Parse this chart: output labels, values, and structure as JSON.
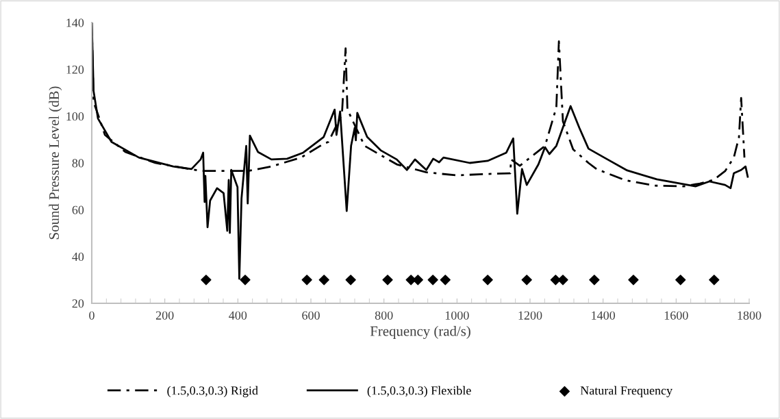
{
  "chart_data": {
    "type": "line",
    "xlabel": "Frequency (rad/s)",
    "ylabel": "Sound Pressure Level (dB)",
    "xlim": [
      0,
      1800
    ],
    "ylim": [
      20,
      140
    ],
    "xticks": [
      0,
      200,
      400,
      600,
      800,
      1000,
      1200,
      1400,
      1600,
      1800
    ],
    "yticks": [
      20,
      40,
      60,
      80,
      100,
      120,
      140
    ],
    "grid": false,
    "legend": "bottom",
    "series": [
      {
        "name": "(1.5,0.3,0.3) Rigid",
        "color": "#000000",
        "line_style": "dashdot",
        "marker": "none",
        "x": [
          0,
          5,
          21,
          36,
          92,
          174,
          268,
          298,
          429,
          492,
          573,
          635,
          648,
          685,
          695,
          700,
          747,
          835,
          916,
          998,
          1084,
          1146,
          1148,
          1172,
          1241,
          1272,
          1279,
          1290,
          1318,
          1360,
          1382,
          1459,
          1541,
          1622,
          1665,
          1702,
          1734,
          1758,
          1772,
          1778,
          1787
        ],
        "values": [
          140,
          106,
          99,
          92,
          84.7,
          80,
          77.4,
          76.6,
          76.6,
          78.5,
          82.3,
          88.2,
          89,
          100.8,
          129,
          102.8,
          87.3,
          79.4,
          76,
          74.7,
          75.3,
          75.6,
          81.5,
          78.8,
          87.3,
          103.7,
          132,
          97.8,
          85.8,
          80,
          77.4,
          72.7,
          70.3,
          70,
          71.2,
          72.7,
          76.5,
          82.3,
          91,
          107.8,
          82.3
        ]
      },
      {
        "name": "(1.5,0.3,0.3) Flexible",
        "color": "#000000",
        "line_style": "solid",
        "marker": "none",
        "x": [
          0,
          5,
          17,
          54,
          129,
          223,
          273,
          298,
          305,
          307,
          309,
          311,
          317,
          324,
          343,
          361,
          371,
          375,
          378,
          382,
          399,
          404,
          410,
          423,
          427,
          433,
          455,
          492,
          535,
          579,
          635,
          665,
          670,
          680,
          698,
          710,
          720,
          723,
          727,
          754,
          792,
          835,
          863,
          885,
          916,
          935,
          951,
          963,
          1035,
          1084,
          1135,
          1154,
          1165,
          1178,
          1191,
          1223,
          1241,
          1253,
          1272,
          1311,
          1335,
          1360,
          1403,
          1466,
          1547,
          1653,
          1691,
          1734,
          1749,
          1758,
          1778,
          1790,
          1796
        ],
        "values": [
          140,
          110.7,
          99,
          89,
          82.3,
          78.5,
          77.4,
          81.5,
          84.4,
          73.6,
          63.3,
          74.5,
          52.5,
          63.9,
          69.2,
          67.1,
          51,
          72.7,
          50.1,
          77,
          69.7,
          30.5,
          64.8,
          87.3,
          62.7,
          91.7,
          84.7,
          81.5,
          81.8,
          84.4,
          91.1,
          102.8,
          92,
          102,
          59.5,
          87.3,
          95,
          89.7,
          101.4,
          91.1,
          85.3,
          81.5,
          77,
          81.5,
          77,
          81.8,
          80.3,
          82.3,
          80,
          80.9,
          84.4,
          90.5,
          58.3,
          77.4,
          70.6,
          79.4,
          86.7,
          83.8,
          87.3,
          104.3,
          95,
          86.1,
          82.3,
          76.8,
          73,
          70,
          72.1,
          70.6,
          69.2,
          75.6,
          77,
          78.5,
          74.1
        ]
      },
      {
        "name": "Natural Frequency",
        "type": "scatter",
        "color": "#000000",
        "marker": "diamond",
        "x": [
          313,
          420,
          589,
          636,
          709,
          810,
          874,
          893,
          934,
          968,
          1084,
          1191,
          1270,
          1290,
          1376,
          1483,
          1612,
          1704
        ],
        "values": [
          30,
          30,
          30,
          30,
          30,
          30,
          30,
          30,
          30,
          30,
          30,
          30,
          30,
          30,
          30,
          30,
          30,
          30
        ]
      }
    ]
  }
}
